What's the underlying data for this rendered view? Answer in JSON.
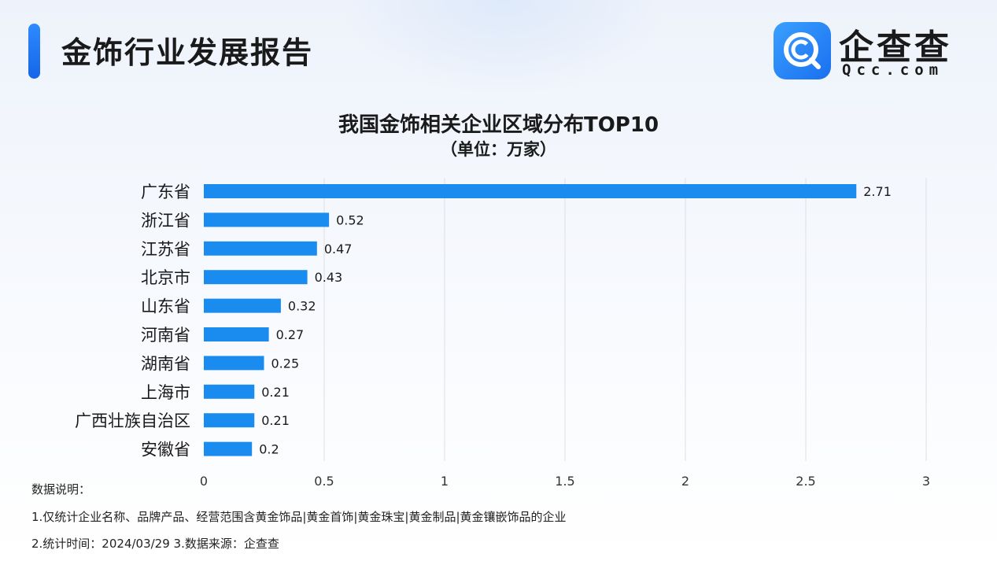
{
  "header": {
    "title": "金饰行业发展报告",
    "logo_name": "企查查",
    "logo_domain": "Qcc.com",
    "logo_icon": "qcc-magnifier-icon",
    "accent_color": "#1a73f0"
  },
  "chart_data": {
    "type": "bar",
    "orientation": "horizontal",
    "title": "我国金饰相关企业区域分布TOP10",
    "subtitle": "（单位：万家）",
    "categories": [
      "广东省",
      "浙江省",
      "江苏省",
      "北京市",
      "山东省",
      "河南省",
      "湖南省",
      "上海市",
      "广西壮族自治区",
      "安徽省"
    ],
    "values": [
      2.71,
      0.52,
      0.47,
      0.43,
      0.32,
      0.27,
      0.25,
      0.21,
      0.21,
      0.2
    ],
    "value_labels": [
      "2.71",
      "0.52",
      "0.47",
      "0.43",
      "0.32",
      "0.27",
      "0.25",
      "0.21",
      "0.21",
      "0.2"
    ],
    "xlim": [
      0,
      3
    ],
    "xticks": [
      0,
      0.5,
      1,
      1.5,
      2,
      2.5,
      3
    ],
    "xtick_labels": [
      "0",
      "0.5",
      "1",
      "1.5",
      "2",
      "2.5",
      "3"
    ],
    "grid": true,
    "bar_color": "#1a8cf0"
  },
  "notes": {
    "heading": "数据说明：",
    "line1": "1.仅统计企业名称、品牌产品、经营范围含黄金饰品|黄金首饰|黄金珠宝|黄金制品|黄金镶嵌饰品的企业",
    "line2": "2.统计时间：2024/03/29    3.数据来源：企查查"
  }
}
